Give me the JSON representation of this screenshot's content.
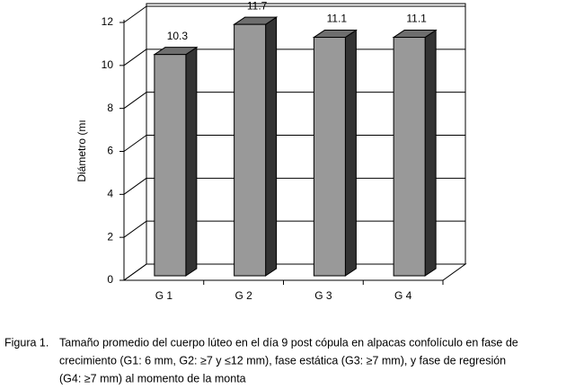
{
  "chart_data": {
    "type": "bar3d",
    "y_label": "Diámetro (mı",
    "categories": [
      "G 1",
      "G 2",
      "G 3",
      "G 4"
    ],
    "values": [
      10.3,
      11.7,
      11.1,
      11.1
    ],
    "color": "#999999",
    "side_color": "#333333",
    "top_color": "#6e6e6e",
    "ylim": [
      0,
      12
    ],
    "yticks": [
      0,
      2,
      4,
      6,
      8,
      10,
      12
    ],
    "grid": true
  },
  "caption": {
    "label": "Figura 1.",
    "lines": [
      "Tamaño promedio del cuerpo lúteo en el día 9 post cópula en alpacas confolículo en fase de",
      "crecimiento (G1: 6 mm, G2: ≥7 y ≤12 mm), fase estática (G3: ≥7 mm), y fase de regresión",
      "(G4: ≥7 mm) al momento de la monta"
    ]
  }
}
